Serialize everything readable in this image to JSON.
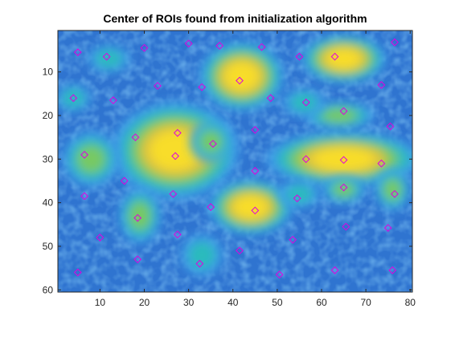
{
  "chart_data": {
    "type": "heatmap",
    "title": "Center of ROIs found from initialization algorithm",
    "xlabel": "",
    "ylabel": "",
    "xlim": [
      0.5,
      80.5
    ],
    "ylim": [
      0.5,
      60.5
    ],
    "y_reversed": true,
    "xticks": [
      10,
      20,
      30,
      40,
      50,
      60,
      70,
      80
    ],
    "yticks": [
      10,
      20,
      30,
      40,
      50,
      60
    ],
    "colormap": "parula",
    "colors": {
      "marker": "#e000e0",
      "background_low": "#2a66c8",
      "background_mid": "#3a8ee0",
      "blob_high": "#ffe02a"
    },
    "heatmap_description_blobs": [
      {
        "x": 42,
        "y": 11,
        "intensity": 1.0,
        "rx": 6,
        "ry": 5
      },
      {
        "x": 65,
        "y": 7,
        "intensity": 0.95,
        "rx": 6,
        "ry": 3.5
      },
      {
        "x": 27,
        "y": 28,
        "intensity": 1.0,
        "rx": 9,
        "ry": 7
      },
      {
        "x": 65,
        "y": 30,
        "intensity": 1.0,
        "rx": 11,
        "ry": 4
      },
      {
        "x": 44,
        "y": 41,
        "intensity": 0.95,
        "rx": 6,
        "ry": 4
      },
      {
        "x": 65,
        "y": 37,
        "intensity": 0.6,
        "rx": 3,
        "ry": 2
      },
      {
        "x": 8,
        "y": 30,
        "intensity": 0.55,
        "rx": 4,
        "ry": 4
      },
      {
        "x": 19,
        "y": 43,
        "intensity": 0.6,
        "rx": 3,
        "ry": 4
      },
      {
        "x": 64,
        "y": 20,
        "intensity": 0.5,
        "rx": 5,
        "ry": 2
      },
      {
        "x": 35,
        "y": 26,
        "intensity": 0.5,
        "rx": 3,
        "ry": 3
      },
      {
        "x": 12,
        "y": 7,
        "intensity": 0.45,
        "rx": 3,
        "ry": 2
      },
      {
        "x": 56,
        "y": 17,
        "intensity": 0.4,
        "rx": 3,
        "ry": 2
      },
      {
        "x": 76,
        "y": 37,
        "intensity": 0.5,
        "rx": 2.5,
        "ry": 3
      },
      {
        "x": 4,
        "y": 16,
        "intensity": 0.45,
        "rx": 2.5,
        "ry": 2
      },
      {
        "x": 55,
        "y": 38,
        "intensity": 0.4,
        "rx": 3,
        "ry": 2
      },
      {
        "x": 33,
        "y": 52,
        "intensity": 0.35,
        "rx": 3,
        "ry": 3
      }
    ],
    "roi_centers": [
      {
        "x": 5,
        "y": 5.5
      },
      {
        "x": 11.5,
        "y": 6.5
      },
      {
        "x": 20,
        "y": 4.5
      },
      {
        "x": 30,
        "y": 3.5
      },
      {
        "x": 37,
        "y": 4
      },
      {
        "x": 46.5,
        "y": 4.3
      },
      {
        "x": 55,
        "y": 6.5
      },
      {
        "x": 63,
        "y": 6.5
      },
      {
        "x": 76.5,
        "y": 3.2
      },
      {
        "x": 41.5,
        "y": 12
      },
      {
        "x": 33,
        "y": 13.5
      },
      {
        "x": 23,
        "y": 13.2
      },
      {
        "x": 4,
        "y": 16
      },
      {
        "x": 13,
        "y": 16.5
      },
      {
        "x": 48.5,
        "y": 16
      },
      {
        "x": 56.5,
        "y": 17
      },
      {
        "x": 73.5,
        "y": 13
      },
      {
        "x": 65,
        "y": 19
      },
      {
        "x": 45,
        "y": 23.3
      },
      {
        "x": 75.5,
        "y": 22.5
      },
      {
        "x": 27.5,
        "y": 24
      },
      {
        "x": 18,
        "y": 25
      },
      {
        "x": 35.5,
        "y": 26.5
      },
      {
        "x": 6.5,
        "y": 29
      },
      {
        "x": 27,
        "y": 29.3
      },
      {
        "x": 56.5,
        "y": 30
      },
      {
        "x": 65,
        "y": 30.2
      },
      {
        "x": 73.5,
        "y": 31
      },
      {
        "x": 45,
        "y": 32.7
      },
      {
        "x": 15.5,
        "y": 35
      },
      {
        "x": 65,
        "y": 36.5
      },
      {
        "x": 26.5,
        "y": 38
      },
      {
        "x": 76.5,
        "y": 38
      },
      {
        "x": 6.5,
        "y": 38.5
      },
      {
        "x": 54.5,
        "y": 39
      },
      {
        "x": 35,
        "y": 41
      },
      {
        "x": 45,
        "y": 41.8
      },
      {
        "x": 18.5,
        "y": 43.5
      },
      {
        "x": 65.5,
        "y": 45.5
      },
      {
        "x": 75,
        "y": 45.8
      },
      {
        "x": 27.5,
        "y": 47.3
      },
      {
        "x": 10,
        "y": 48
      },
      {
        "x": 53.5,
        "y": 48.5
      },
      {
        "x": 41.5,
        "y": 51
      },
      {
        "x": 18.5,
        "y": 53
      },
      {
        "x": 32.5,
        "y": 54
      },
      {
        "x": 63,
        "y": 55.5
      },
      {
        "x": 76,
        "y": 55.5
      },
      {
        "x": 5,
        "y": 56
      },
      {
        "x": 50.5,
        "y": 56.5
      }
    ]
  }
}
